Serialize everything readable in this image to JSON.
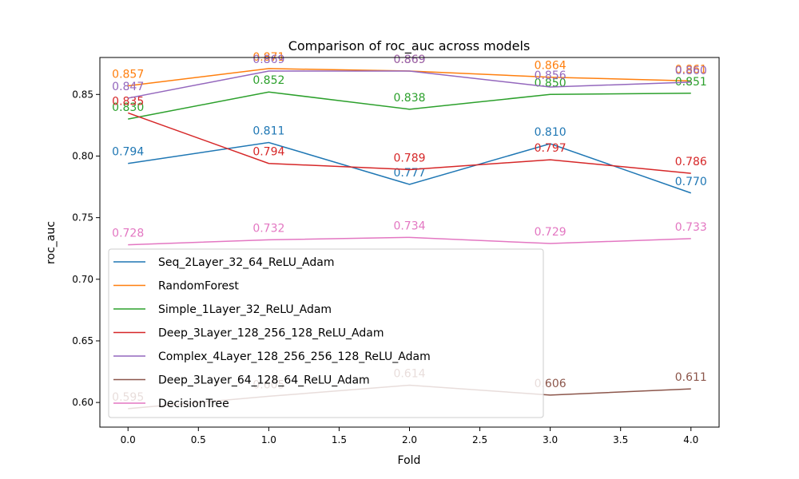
{
  "chart_data": {
    "type": "line",
    "title": "Comparison of roc_auc across models",
    "xlabel": "Fold",
    "ylabel": "roc_auc",
    "x": [
      0,
      1,
      2,
      3,
      4
    ],
    "xlim": [
      -0.2,
      4.2
    ],
    "ylim": [
      0.58,
      0.88
    ],
    "xticks": [
      "0.0",
      "0.5",
      "1.0",
      "1.5",
      "2.0",
      "2.5",
      "3.0",
      "3.5",
      "4.0"
    ],
    "xtick_values": [
      0,
      0.5,
      1,
      1.5,
      2,
      2.5,
      3,
      3.5,
      4
    ],
    "yticks": [
      "0.60",
      "0.65",
      "0.70",
      "0.75",
      "0.80",
      "0.85"
    ],
    "ytick_values": [
      0.6,
      0.65,
      0.7,
      0.75,
      0.8,
      0.85
    ],
    "grid": false,
    "legend_position": "lower-left",
    "series": [
      {
        "name": "Seq_2Layer_32_64_ReLU_Adam",
        "color": "#1f77b4",
        "values": [
          0.794,
          0.811,
          0.777,
          0.81,
          0.77
        ],
        "labels": [
          "0.794",
          "0.811",
          "0.777",
          "0.810",
          "0.770"
        ]
      },
      {
        "name": "RandomForest",
        "color": "#ff7f0e",
        "values": [
          0.857,
          0.871,
          0.869,
          0.864,
          0.861
        ],
        "labels": [
          "0.857",
          "0.871",
          "0.869",
          "0.864",
          "0.861"
        ]
      },
      {
        "name": "Simple_1Layer_32_ReLU_Adam",
        "color": "#2ca02c",
        "values": [
          0.83,
          0.852,
          0.838,
          0.85,
          0.851
        ],
        "labels": [
          "0.830",
          "0.852",
          "0.838",
          "0.850",
          "0.851"
        ]
      },
      {
        "name": "Deep_3Layer_128_256_128_ReLU_Adam",
        "color": "#d62728",
        "values": [
          0.835,
          0.794,
          0.789,
          0.797,
          0.786
        ],
        "labels": [
          "0.835",
          "0.794",
          "0.789",
          "0.797",
          "0.786"
        ]
      },
      {
        "name": "Complex_4Layer_128_256_256_128_ReLU_Adam",
        "color": "#9467bd",
        "values": [
          0.847,
          0.869,
          0.869,
          0.856,
          0.86
        ],
        "labels": [
          "0.847",
          "0.869",
          "0.869",
          "0.856",
          "0.860"
        ]
      },
      {
        "name": "Deep_3Layer_64_128_64_ReLU_Adam",
        "color": "#8c564b",
        "values": [
          0.595,
          0.605,
          0.614,
          0.606,
          0.611
        ],
        "labels": [
          "0.595",
          "0.605",
          "0.614",
          "0.606",
          "0.611"
        ]
      },
      {
        "name": "DecisionTree",
        "color": "#e377c2",
        "values": [
          0.728,
          0.732,
          0.734,
          0.729,
          0.733
        ],
        "labels": [
          "0.728",
          "0.732",
          "0.734",
          "0.729",
          "0.733"
        ]
      }
    ]
  }
}
